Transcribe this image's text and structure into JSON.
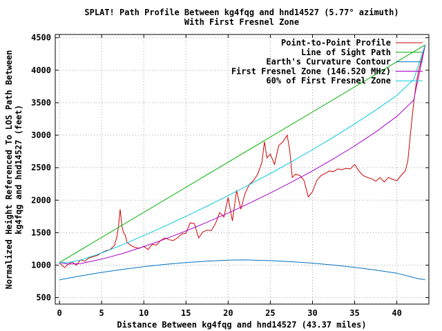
{
  "chart_data": {
    "type": "line",
    "title": "SPLAT! Path Profile Between kg4fqg and hnd14527 (5.77° azimuth)",
    "subtitle": "With First Fresnel Zone",
    "xlabel": "Distance Between kg4fqg and hnd14527 (43.37 miles)",
    "ylabel_lines": [
      "Normalized Height Referenced To LOS Path Between",
      "kg4fqg and hnd14527 (feet)"
    ],
    "xlim": [
      -0.5,
      43.8
    ],
    "ylim": [
      400,
      4550
    ],
    "x_ticks": [
      0,
      5,
      10,
      15,
      20,
      25,
      30,
      35,
      40
    ],
    "y_ticks": [
      500,
      1000,
      1500,
      2000,
      2500,
      3000,
      3500,
      4000,
      4500
    ],
    "grid": true,
    "legend_position": "top-right",
    "series": [
      {
        "name": "Point-to-Point Profile",
        "color": "#cc0000",
        "x": [
          0,
          0.3,
          0.6,
          1.0,
          1.5,
          2.0,
          2.5,
          3.0,
          3.5,
          4.0,
          4.5,
          5.0,
          5.5,
          6.0,
          6.5,
          6.8,
          7.0,
          7.2,
          7.4,
          7.6,
          7.8,
          8.0,
          8.5,
          9.0,
          9.5,
          10.0,
          10.5,
          11.0,
          11.5,
          12.0,
          12.5,
          13.0,
          13.5,
          14.0,
          14.5,
          15.0,
          15.5,
          16.0,
          16.5,
          17.0,
          17.5,
          18.0,
          18.5,
          19.0,
          19.5,
          20.0,
          20.5,
          21.0,
          21.5,
          22.0,
          22.5,
          23.0,
          23.5,
          24.0,
          24.3,
          24.6,
          25.0,
          25.5,
          26.0,
          26.5,
          27.0,
          27.3,
          27.6,
          28.0,
          28.5,
          29.0,
          29.5,
          30.0,
          30.5,
          31.0,
          31.5,
          32.0,
          32.5,
          33.0,
          33.5,
          34.0,
          34.5,
          35.0,
          35.5,
          36.0,
          36.5,
          37.0,
          37.5,
          38.0,
          38.5,
          39.0,
          39.5,
          40.0,
          40.5,
          41.0,
          41.3,
          41.6,
          42.0,
          42.3,
          42.6,
          43.0,
          43.37
        ],
        "values": [
          1030,
          1000,
          960,
          1010,
          1050,
          1000,
          1080,
          1060,
          1110,
          1130,
          1150,
          1190,
          1220,
          1240,
          1300,
          1430,
          1600,
          1860,
          1600,
          1500,
          1460,
          1350,
          1300,
          1270,
          1260,
          1290,
          1240,
          1320,
          1310,
          1380,
          1420,
          1390,
          1380,
          1420,
          1480,
          1490,
          1650,
          1640,
          1420,
          1510,
          1540,
          1530,
          1640,
          1810,
          1740,
          2040,
          1680,
          2150,
          1860,
          2100,
          2240,
          2300,
          2400,
          2580,
          2900,
          2650,
          2710,
          2550,
          2840,
          2900,
          3000,
          2770,
          2350,
          2400,
          2380,
          2300,
          2050,
          2130,
          2300,
          2380,
          2410,
          2450,
          2440,
          2480,
          2470,
          2490,
          2480,
          2550,
          2450,
          2380,
          2350,
          2330,
          2290,
          2350,
          2280,
          2350,
          2320,
          2300,
          2380,
          2450,
          2600,
          3000,
          3500,
          3800,
          4000,
          4200,
          4380
        ]
      },
      {
        "name": "Line of Sight Path",
        "color": "#00b000",
        "x": [
          0,
          43.37
        ],
        "values": [
          1040,
          4390
        ]
      },
      {
        "name": "Earth's Curvature Contour",
        "color": "#0070c0",
        "x": [
          0,
          2.5,
          5,
          7.5,
          10,
          12.5,
          15,
          17.5,
          20,
          21.685,
          22.5,
          25,
          27.5,
          30,
          32.5,
          35,
          37.5,
          40,
          42.5,
          43.37
        ],
        "values": [
          775,
          834,
          888,
          935,
          976,
          1011,
          1039,
          1061,
          1077,
          1080,
          1079,
          1069,
          1053,
          1030,
          1001,
          966,
          924,
          876,
          793,
          775
        ]
      },
      {
        "name": "First Fresnel Zone (146.520 MHz)",
        "color": "#aa00cc",
        "x": [
          0,
          1,
          2.5,
          5,
          7.5,
          10,
          12.5,
          15,
          17.5,
          20,
          22.5,
          25,
          27.5,
          30,
          32.5,
          35,
          37.5,
          40,
          42,
          43.37
        ],
        "values": [
          1040,
          1017,
          1022,
          1092,
          1180,
          1285,
          1400,
          1526,
          1660,
          1802,
          1952,
          2110,
          2276,
          2451,
          2637,
          2835,
          3050,
          3290,
          3540,
          4390
        ]
      },
      {
        "name": "60% of First Fresnel Zone",
        "color": "#00c8dc",
        "x": [
          0,
          1,
          2.5,
          5,
          7.5,
          10,
          12.5,
          15,
          17.5,
          20,
          22.5,
          25,
          27.5,
          30,
          32.5,
          35,
          37.5,
          40,
          42,
          43.37
        ],
        "values": [
          1040,
          1038,
          1078,
          1187,
          1315,
          1455,
          1600,
          1751,
          1908,
          2070,
          2237,
          2411,
          2590,
          2777,
          2971,
          3173,
          3386,
          3612,
          3858,
          4390
        ]
      }
    ]
  }
}
